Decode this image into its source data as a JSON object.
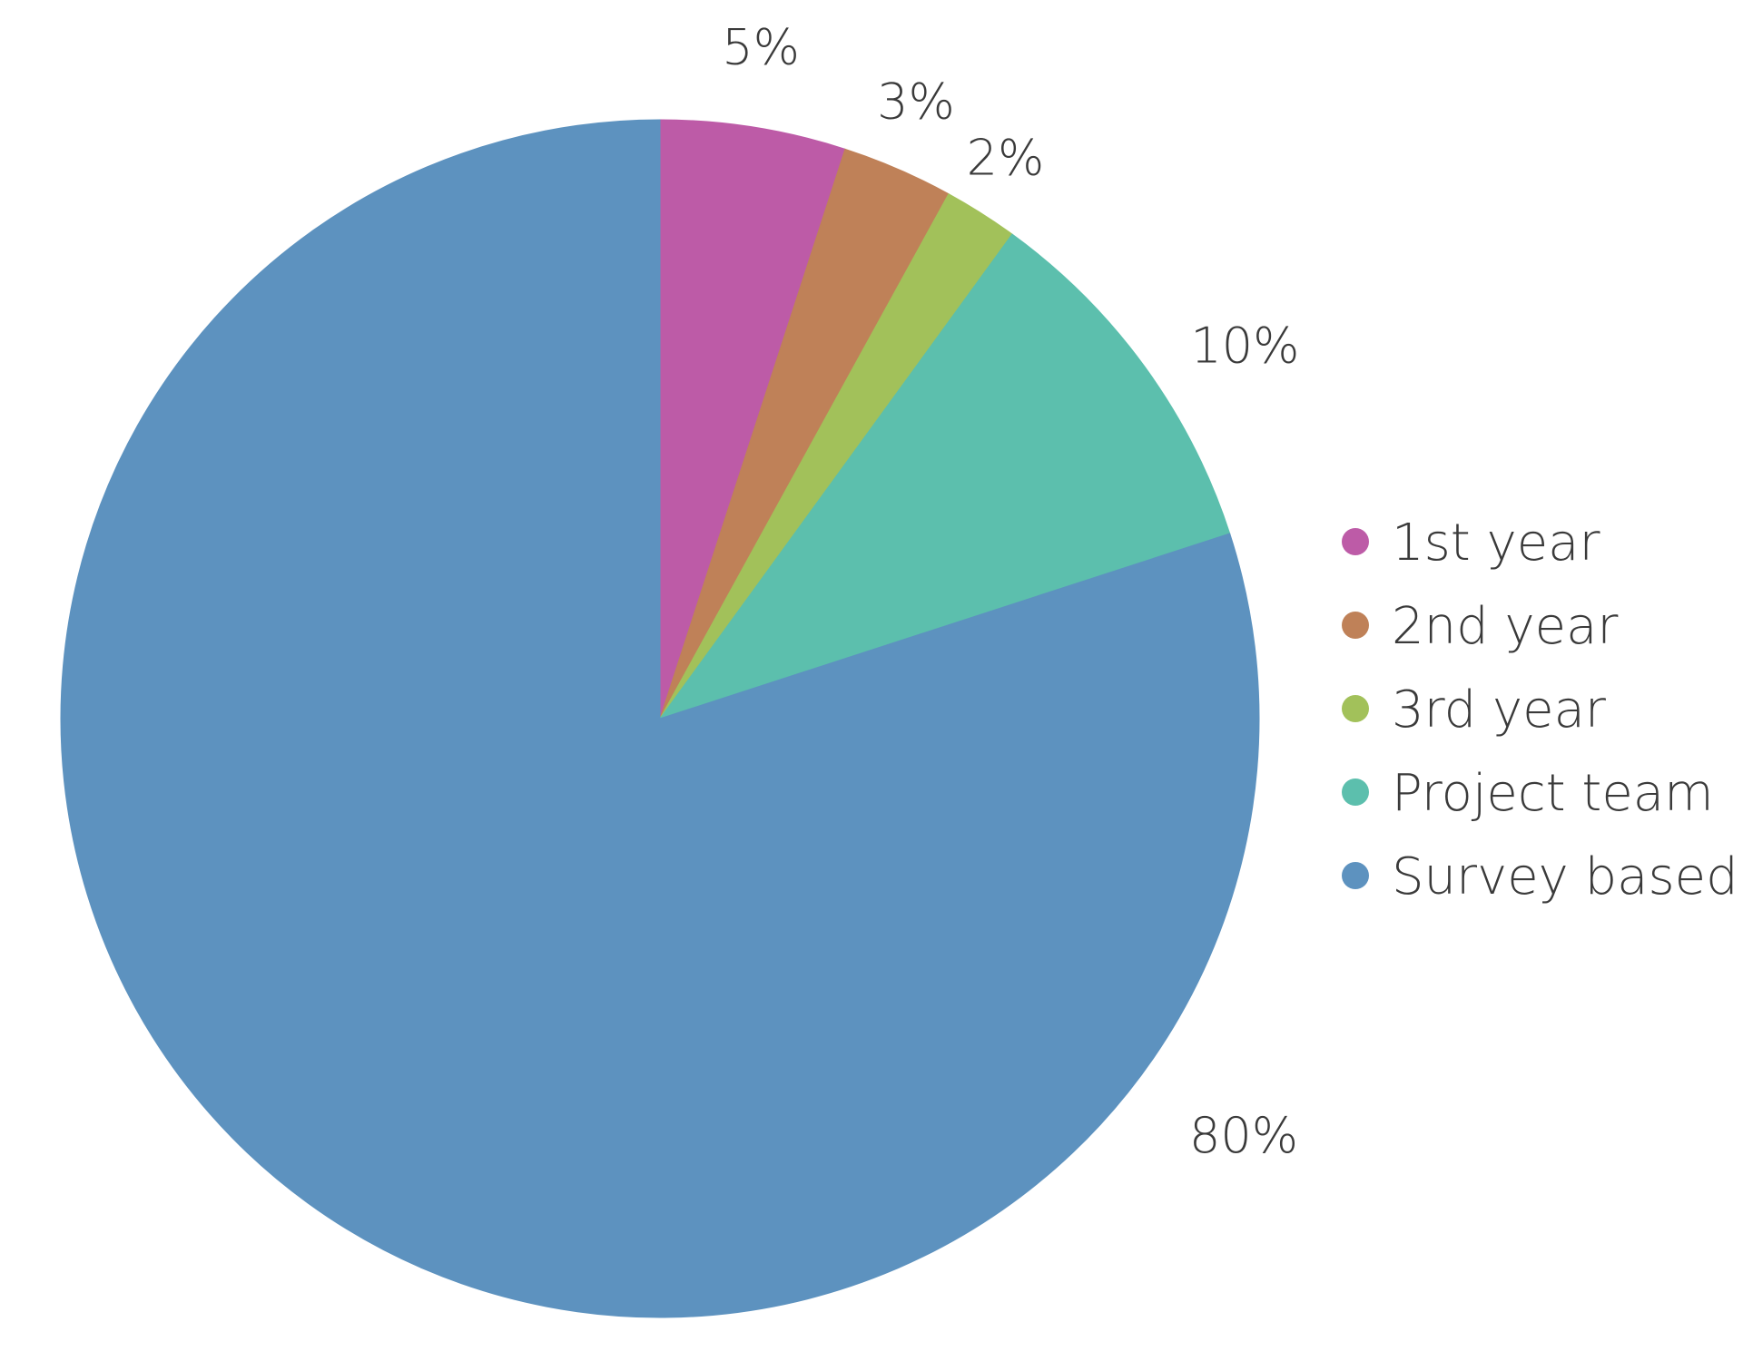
{
  "chart_data": {
    "type": "pie",
    "start_angle": "12 o'clock",
    "direction": "clockwise",
    "legend_position": "right",
    "slices": [
      {
        "label": "1st year",
        "value": 5,
        "value_label": "5%",
        "color": "#bd5ba7"
      },
      {
        "label": "2nd year",
        "value": 3,
        "value_label": "3%",
        "color": "#bf8158"
      },
      {
        "label": "3rd year",
        "value": 2,
        "value_label": "2%",
        "color": "#a2c15a"
      },
      {
        "label": "Project team",
        "value": 10,
        "value_label": "10%",
        "color": "#5cbfad"
      },
      {
        "label": "Survey based",
        "value": 80,
        "value_label": "80%",
        "color": "#5d92bf"
      }
    ]
  }
}
